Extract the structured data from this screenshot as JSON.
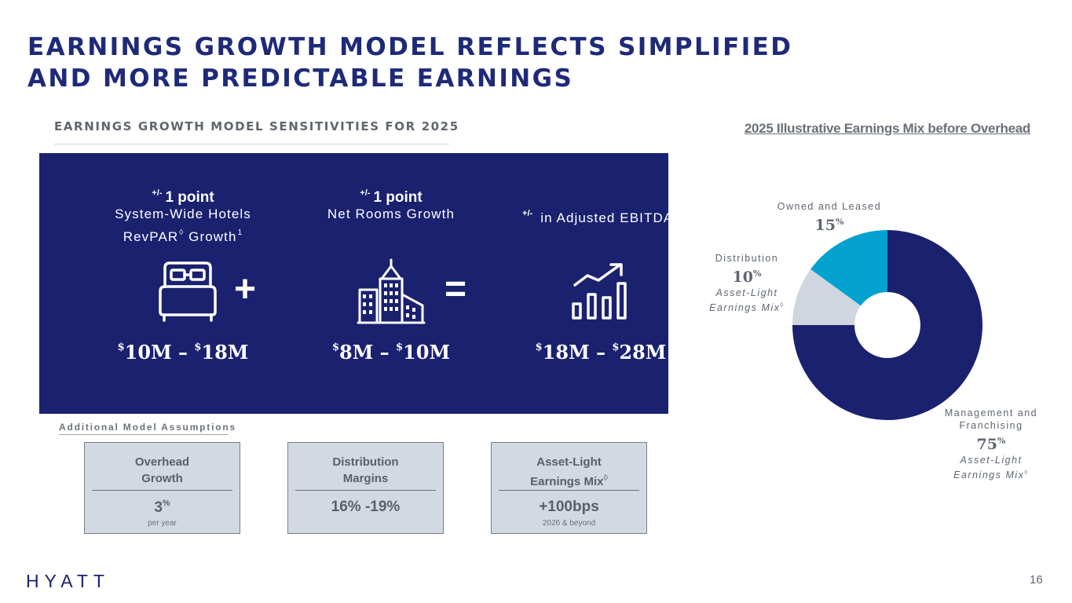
{
  "title": {
    "line1": "EARNINGS GROWTH MODEL REFLECTS SIMPLIFIED",
    "line2": "AND MORE PREDICTABLE EARNINGS"
  },
  "subtitle": "EARNINGS GROWTH MODEL SENSITIVITIES FOR 2025",
  "sensitivities": {
    "revpar": {
      "prefix": "+/-",
      "label1": "1 point",
      "label2a": "System-Wide Hotels",
      "label2b": "RevPAR",
      "mark": "◊",
      "label2c": "Growth",
      "footnote": "1",
      "v1": "10M",
      "v2": "18M",
      "currency": "$",
      "dash": "–",
      "icon": "bed-icon"
    },
    "rooms": {
      "prefix": "+/-",
      "label1": "1 point",
      "label2": "Net Rooms Growth",
      "v1": "8M",
      "v2": "10M",
      "currency": "$",
      "dash": "–",
      "icon": "buildings-icon"
    },
    "ebitda": {
      "prefix": "+/-",
      "label": "in Adjusted EBITDA",
      "mark": "†",
      "v1": "18M",
      "v2": "28M",
      "currency": "$",
      "dash": "–",
      "icon": "growth-chart-icon"
    },
    "plus": "+",
    "equals": "="
  },
  "assumptions": {
    "heading": "Additional Model Assumptions",
    "items": [
      {
        "line1": "Overhead",
        "line2": "Growth",
        "value": "3",
        "value_sup": "%",
        "note": "per year"
      },
      {
        "line1": "Distribution",
        "line2": "Margins",
        "value": "16% -19%"
      },
      {
        "line1": "Asset-Light",
        "line2": "Earnings Mix",
        "mark": "◊",
        "value": "+100bps",
        "note": "2026 & beyond"
      }
    ]
  },
  "chart_data": {
    "type": "pie",
    "title": "2025 Illustrative Earnings Mix before Overhead",
    "unit": "%",
    "asset_light_label": "Asset-Light",
    "asset_light_label2": "Earnings Mix",
    "asset_light_mark": "◊",
    "slices": [
      {
        "label": "Management and Franchising",
        "label1": "Management and",
        "label2": "Franchising",
        "value": 75,
        "color": "#1a216f"
      },
      {
        "label": "Distribution",
        "value": 10,
        "color": "#cfd6e0"
      },
      {
        "label": "Owned and Leased",
        "value": 15,
        "color": "#03a2cf"
      }
    ]
  },
  "footer": {
    "logo": "HYATT",
    "page_number": "16"
  }
}
